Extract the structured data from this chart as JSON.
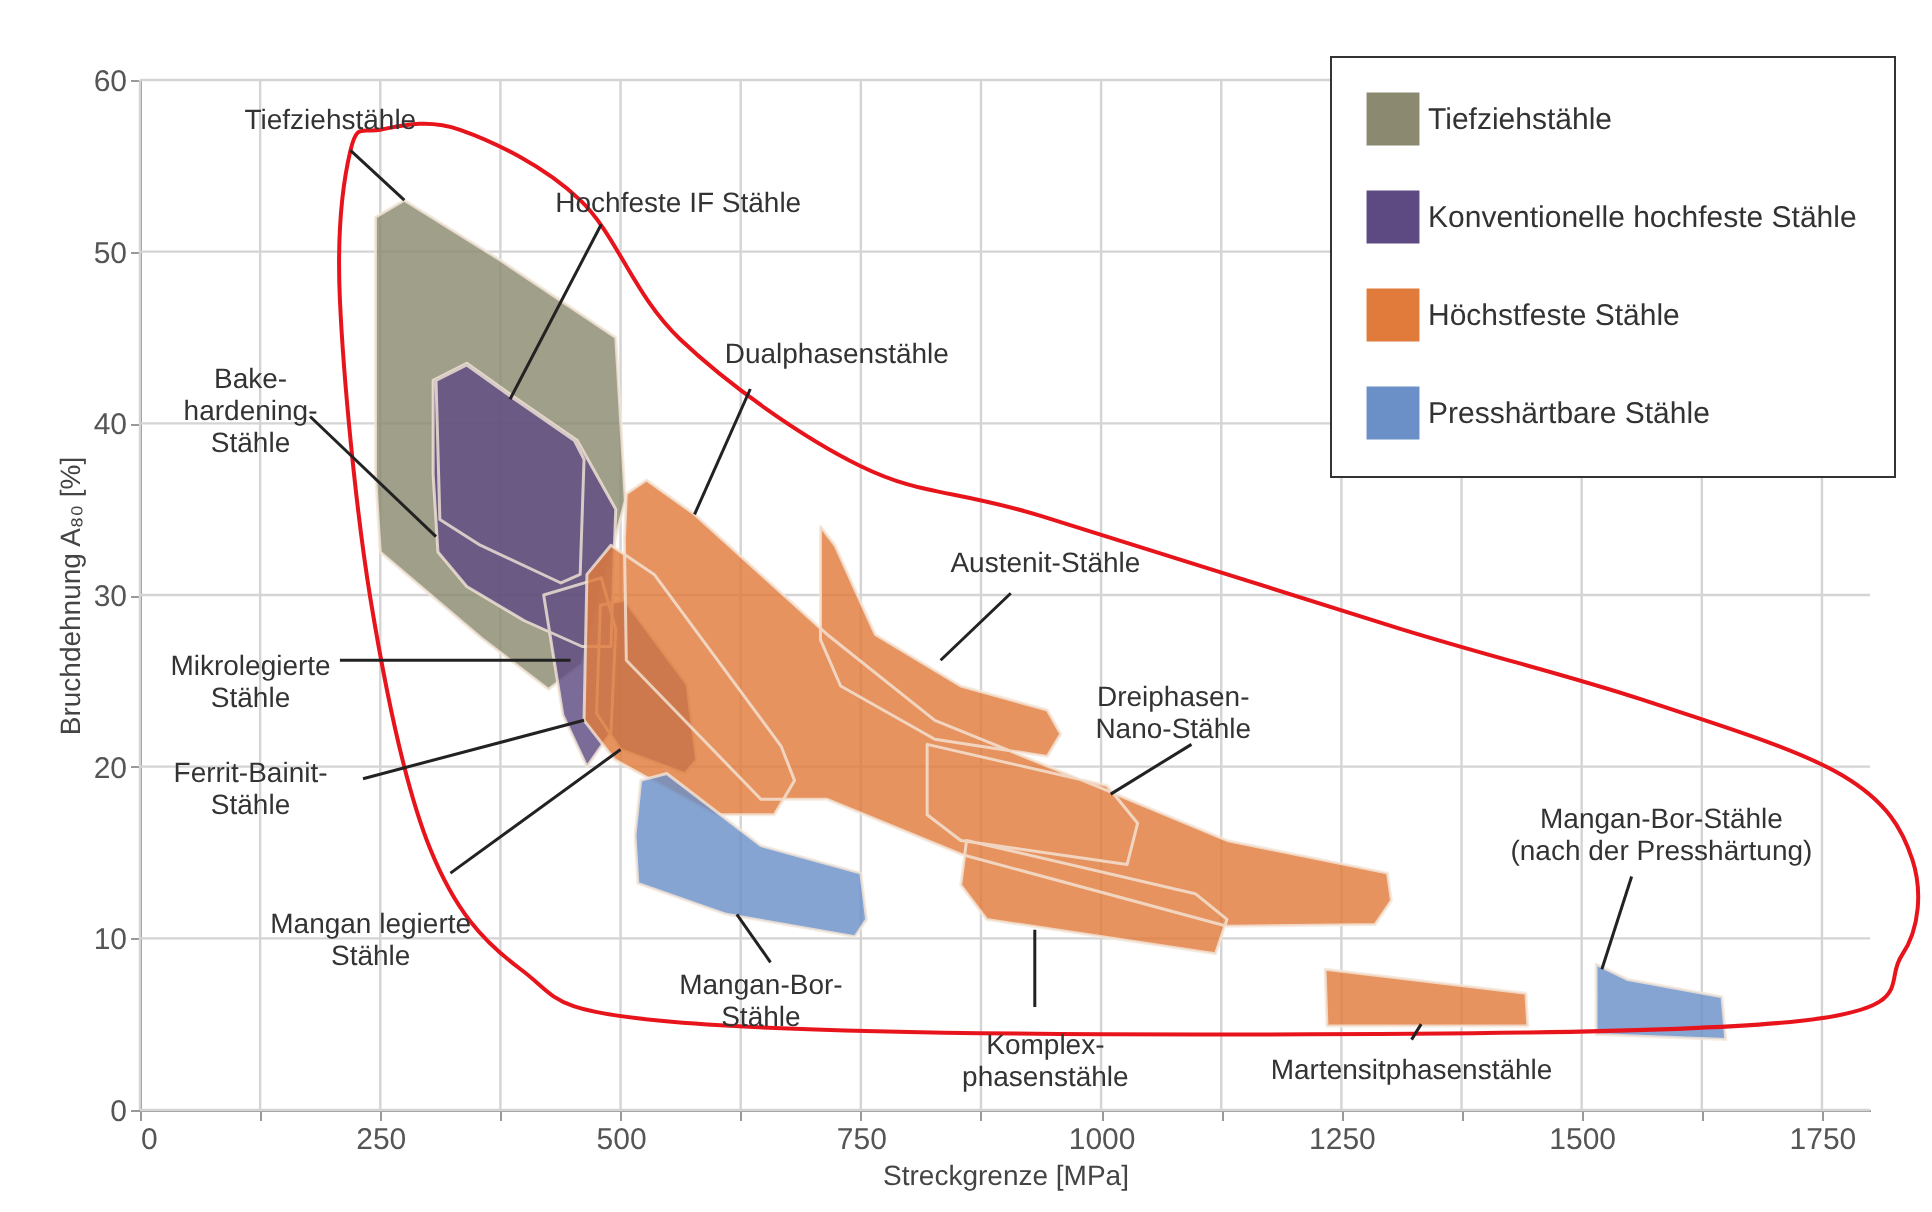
{
  "chart_data": {
    "type": "area",
    "xlabel": "Streckgrenze [MPa]",
    "ylabel": "Bruchdehnung A₈₀ [%]",
    "xlim": [
      0,
      1800
    ],
    "ylim": [
      0,
      60
    ],
    "xticks": [
      0,
      {
        "value": 125,
        "label": null
      },
      250,
      {
        "value": 375,
        "label": null
      },
      500,
      {
        "value": 625,
        "label": null
      },
      750,
      {
        "value": 875,
        "label": null
      },
      1000,
      {
        "value": 1125,
        "label": null
      },
      1250,
      {
        "value": 1375,
        "label": null
      },
      1500,
      {
        "value": 1625,
        "label": null
      },
      1750
    ],
    "yticks": [
      0,
      10,
      20,
      30,
      40,
      50,
      60
    ],
    "grid": true,
    "legend": "top right",
    "marker": "none",
    "series": [
      {
        "name": "Tiefziehstähle",
        "color": "#8b8a70",
        "x": [
          245,
          275,
          375,
          495,
          505,
          460,
          425,
          355,
          250,
          245
        ],
        "values": [
          52,
          53,
          49.5,
          45,
          35.5,
          26,
          24.5,
          27.5,
          32.5,
          37
        ]
      },
      {
        "name": "Konventionelle hochfeste Stähle",
        "color": "#5e4a82",
        "x": [
          305,
          340,
          390,
          455,
          480,
          495,
          490,
          460,
          400,
          340,
          310,
          305,
          null,
          308,
          340,
          390,
          452,
          462,
          458,
          438,
          354,
          312,
          null,
          420,
          480,
          495,
          490,
          465,
          440,
          null,
          479,
          504,
          569,
          579,
          567,
          500,
          475
        ],
        "values": [
          42.5,
          43.5,
          41.5,
          39,
          36.5,
          35,
          27,
          27,
          28.5,
          30.5,
          32.5,
          37,
          null,
          42.5,
          43.4,
          41.4,
          39,
          37.9,
          31.2,
          30.7,
          32.9,
          34.4,
          null,
          30,
          31,
          28,
          22,
          20,
          23,
          null,
          29.4,
          29.7,
          24.8,
          20.4,
          19.6,
          21,
          23.1
        ]
      },
      {
        "name": "Höchstfeste Stähle",
        "color": "#e07b3c",
        "x": [
          506,
          527,
          577,
          715,
          827,
          994,
          1131,
          1298,
          1302,
          1285,
          1131,
          854,
          715,
          646,
          506,
          504,
          null,
          465,
          490,
          535,
          667,
          681,
          660,
          598,
          494,
          462,
          null,
          708,
          723,
          765,
          854,
          944,
          958,
          944,
          827,
          729,
          708,
          null,
          819,
          1006,
          1038,
          1027,
          854,
          819,
          null,
          860,
          1098,
          1131,
          1119,
          881,
          854,
          null,
          1233,
          1442,
          1444,
          1235
        ],
        "values": [
          35.9,
          36.7,
          34.7,
          27.7,
          22.7,
          18.9,
          15.7,
          13.8,
          12.2,
          10.8,
          10.7,
          14.9,
          18.1,
          18.1,
          26.2,
          33.2,
          null,
          31.2,
          32.9,
          31.2,
          21.2,
          19.2,
          17.2,
          17.2,
          20.4,
          22.7,
          null,
          34,
          32.9,
          27.7,
          24.7,
          23.3,
          21.9,
          20.6,
          21.6,
          24.7,
          27.4,
          null,
          21.3,
          18.9,
          16.7,
          14.3,
          15.7,
          17.2,
          null,
          15.7,
          12.6,
          11.1,
          9.1,
          11.1,
          13.1,
          null,
          8.2,
          6.8,
          4.9,
          4.9
        ]
      },
      {
        "name": "Presshärtbare Stähle",
        "color": "#6b90c8",
        "x": [
          521,
          548,
          646,
          750,
          756,
          744,
          610,
          518,
          515,
          null,
          1515,
          1548,
          1646,
          1650,
          1515
        ],
        "values": [
          19.2,
          19.6,
          15.4,
          13.8,
          11.1,
          10.1,
          11.4,
          13.2,
          16,
          null,
          8.5,
          7.6,
          6.6,
          4.1,
          4.4
        ]
      }
    ],
    "annotations": [
      {
        "text": "Tiefziehstähle",
        "x": 275,
        "y": 53
      },
      {
        "text": "Hochfeste IF Stähle",
        "x": 385,
        "y": 41.4
      },
      {
        "text": "Bake-\nhardening-\nStähle",
        "x": 308,
        "y": 33.4
      },
      {
        "text": "Dualphasenstähle",
        "x": 577,
        "y": 34.7
      },
      {
        "text": "Austenit-Stähle",
        "x": 833,
        "y": 26.2
      },
      {
        "text": "Dreiphasen-\nNano-Stähle",
        "x": 1010,
        "y": 18.4
      },
      {
        "text": "Mikrolegierte\nStähle",
        "x": 448,
        "y": 26.2
      },
      {
        "text": "Ferrit-Bainit-\nStähle",
        "x": 462,
        "y": 22.7
      },
      {
        "text": "Mangan legierte\nStähle",
        "x": 500,
        "y": 21
      },
      {
        "text": "Mangan-Bor-\nStähle",
        "x": 621,
        "y": 11.4
      },
      {
        "text": "Komplex-\nphasenstähle",
        "x": 931,
        "y": 10.5
      },
      {
        "text": "Martensitphasenstähle",
        "x": 1333,
        "y": 5
      },
      {
        "text": "Mangan-Bor-Stähle\n(nach der Presshärtung)",
        "x": 1521,
        "y": 8.2
      }
    ]
  }
}
